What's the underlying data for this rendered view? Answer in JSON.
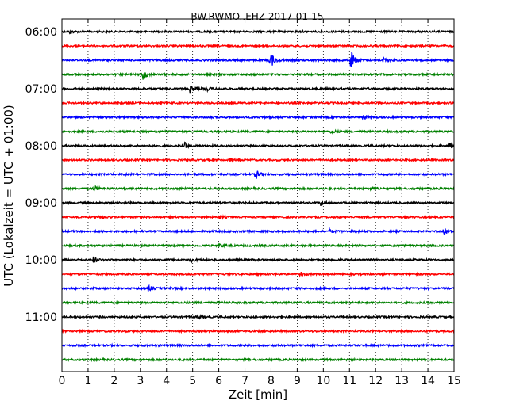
{
  "chart_data": {
    "type": "line",
    "title": "BW.RWMO..EHZ 2017-01-15",
    "xlabel": "Zeit  [min]",
    "ylabel": "UTC (Lokalzeit = UTC + 01:00)",
    "xlim": [
      0,
      15
    ],
    "x_ticks": [
      0,
      1,
      2,
      3,
      4,
      5,
      6,
      7,
      8,
      9,
      10,
      11,
      12,
      13,
      14,
      15
    ],
    "x_tick_labels": [
      "0",
      "1",
      "2",
      "3",
      "4",
      "5",
      "6",
      "7",
      "8",
      "9",
      "10",
      "11",
      "12",
      "13",
      "14",
      "15"
    ],
    "y_tick_labels": [
      "06:00",
      "07:00",
      "08:00",
      "09:00",
      "10:00",
      "11:00"
    ],
    "grid": "vertical dotted at each minute",
    "trace_colors": [
      "#000000",
      "#ff0000",
      "#0000ff",
      "#008000"
    ],
    "series": [
      {
        "values": [
          {
            "t": 0.3,
            "amp": 0.15
          }
        ]
      },
      {
        "values": []
      },
      {
        "values": [
          {
            "t": 7.95,
            "amp": 0.9
          },
          {
            "t": 11.05,
            "amp": 1.0
          },
          {
            "t": 12.3,
            "amp": 0.25
          }
        ]
      },
      {
        "values": [
          {
            "t": 3.1,
            "amp": 0.5
          }
        ]
      },
      {
        "values": [
          {
            "t": 4.9,
            "amp": 0.35
          },
          {
            "t": 5.5,
            "amp": 0.2
          }
        ]
      },
      {
        "values": []
      },
      {
        "values": [
          {
            "t": 11.5,
            "amp": 0.2
          }
        ]
      },
      {
        "values": [
          {
            "t": 10.3,
            "amp": 0.15
          }
        ]
      },
      {
        "values": [
          {
            "t": 4.7,
            "amp": 0.25
          },
          {
            "t": 14.8,
            "amp": 0.25
          }
        ]
      },
      {
        "values": [
          {
            "t": 6.4,
            "amp": 0.15
          }
        ]
      },
      {
        "values": [
          {
            "t": 7.4,
            "amp": 0.45
          }
        ]
      },
      {
        "values": [
          {
            "t": 1.2,
            "amp": 0.25
          },
          {
            "t": 11.8,
            "amp": 0.2
          }
        ]
      },
      {
        "values": [
          {
            "t": 9.9,
            "amp": 0.25
          }
        ]
      },
      {
        "values": [
          {
            "t": 1.4,
            "amp": 0.2
          },
          {
            "t": 6.0,
            "amp": 0.15
          }
        ]
      },
      {
        "values": [
          {
            "t": 10.2,
            "amp": 0.2
          },
          {
            "t": 14.6,
            "amp": 0.3
          }
        ]
      },
      {
        "values": [
          {
            "t": 6.0,
            "amp": 0.15
          }
        ]
      },
      {
        "values": [
          {
            "t": 1.2,
            "amp": 0.25
          },
          {
            "t": 4.9,
            "amp": 0.2
          }
        ]
      },
      {
        "values": [
          {
            "t": 9.1,
            "amp": 0.25
          }
        ]
      },
      {
        "values": [
          {
            "t": 3.3,
            "amp": 0.25
          }
        ]
      },
      {
        "values": []
      },
      {
        "values": [
          {
            "t": 5.2,
            "amp": 0.15
          }
        ]
      },
      {
        "values": []
      },
      {
        "values": []
      },
      {
        "values": []
      }
    ]
  }
}
